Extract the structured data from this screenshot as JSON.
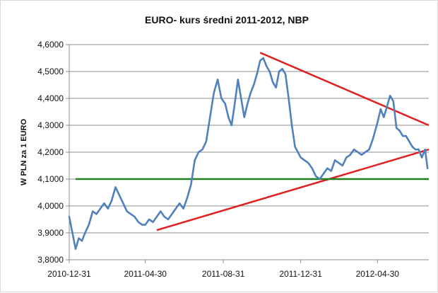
{
  "chart_data": {
    "type": "line",
    "title": "EURO- kurs średni  2011-2012, NBP",
    "xlabel": "",
    "ylabel": "W PLN za 1 EURO",
    "ylim": [
      3.8,
      4.6
    ],
    "yticks": [
      3.8,
      3.9,
      4.0,
      4.1,
      4.2,
      4.3,
      4.4,
      4.5,
      4.6
    ],
    "ytick_labels": [
      "3,8000",
      "3,9000",
      "4,0000",
      "4,1000",
      "4,2000",
      "4,3000",
      "4,4000",
      "4,5000",
      "4,6000"
    ],
    "xlim": [
      "2010-12-31",
      "2012-07-20"
    ],
    "xtick_labels": [
      "2010-12-31",
      "2011-04-30",
      "2011-08-31",
      "2011-12-31",
      "2012-04-30"
    ],
    "grid": true,
    "legend": "none",
    "series": [
      {
        "color": "#4f81bd",
        "x": [
          "2010-12-31",
          "2011-01-05",
          "2011-01-10",
          "2011-01-15",
          "2011-01-20",
          "2011-01-25",
          "2011-01-31",
          "2011-02-06",
          "2011-02-12",
          "2011-02-18",
          "2011-02-24",
          "2011-03-02",
          "2011-03-08",
          "2011-03-14",
          "2011-03-20",
          "2011-03-26",
          "2011-04-01",
          "2011-04-07",
          "2011-04-13",
          "2011-04-19",
          "2011-04-25",
          "2011-04-30",
          "2011-05-06",
          "2011-05-12",
          "2011-05-18",
          "2011-05-24",
          "2011-05-30",
          "2011-06-05",
          "2011-06-11",
          "2011-06-17",
          "2011-06-23",
          "2011-06-29",
          "2011-07-05",
          "2011-07-11",
          "2011-07-17",
          "2011-07-23",
          "2011-07-29",
          "2011-08-04",
          "2011-08-10",
          "2011-08-16",
          "2011-08-22",
          "2011-08-28",
          "2011-09-03",
          "2011-09-08",
          "2011-09-13",
          "2011-09-18",
          "2011-09-23",
          "2011-09-28",
          "2011-10-03",
          "2011-10-08",
          "2011-10-13",
          "2011-10-18",
          "2011-10-23",
          "2011-10-28",
          "2011-11-02",
          "2011-11-07",
          "2011-11-12",
          "2011-11-17",
          "2011-11-22",
          "2011-11-27",
          "2011-12-02",
          "2011-12-07",
          "2011-12-12",
          "2011-12-17",
          "2011-12-22",
          "2011-12-31",
          "2012-01-06",
          "2012-01-12",
          "2012-01-18",
          "2012-01-24",
          "2012-01-30",
          "2012-02-05",
          "2012-02-11",
          "2012-02-17",
          "2012-02-23",
          "2012-02-29",
          "2012-03-06",
          "2012-03-12",
          "2012-03-18",
          "2012-03-24",
          "2012-03-30",
          "2012-04-05",
          "2012-04-11",
          "2012-04-17",
          "2012-04-23",
          "2012-04-30",
          "2012-05-05",
          "2012-05-10",
          "2012-05-15",
          "2012-05-20",
          "2012-05-25",
          "2012-05-30",
          "2012-06-04",
          "2012-06-09",
          "2012-06-14",
          "2012-06-19",
          "2012-06-24",
          "2012-06-29",
          "2012-07-04",
          "2012-07-09",
          "2012-07-14",
          "2012-07-18"
        ],
        "values": [
          3.96,
          3.9,
          3.84,
          3.88,
          3.87,
          3.9,
          3.93,
          3.98,
          3.97,
          3.99,
          4.01,
          3.99,
          4.02,
          4.07,
          4.04,
          4.01,
          3.98,
          3.97,
          3.96,
          3.94,
          3.93,
          3.93,
          3.95,
          3.94,
          3.96,
          3.98,
          3.96,
          3.95,
          3.97,
          3.99,
          4.01,
          3.99,
          4.03,
          4.08,
          4.17,
          4.2,
          4.21,
          4.24,
          4.33,
          4.42,
          4.47,
          4.4,
          4.38,
          4.33,
          4.3,
          4.38,
          4.47,
          4.4,
          4.33,
          4.38,
          4.42,
          4.45,
          4.49,
          4.54,
          4.55,
          4.52,
          4.5,
          4.46,
          4.44,
          4.5,
          4.51,
          4.49,
          4.4,
          4.3,
          4.22,
          4.18,
          4.17,
          4.16,
          4.14,
          4.11,
          4.1,
          4.12,
          4.14,
          4.13,
          4.17,
          4.16,
          4.15,
          4.18,
          4.19,
          4.21,
          4.2,
          4.19,
          4.2,
          4.21,
          4.25,
          4.31,
          4.36,
          4.33,
          4.37,
          4.41,
          4.39,
          4.29,
          4.28,
          4.26,
          4.26,
          4.24,
          4.22,
          4.21,
          4.21,
          4.18,
          4.21,
          4.14
        ]
      }
    ],
    "trend_lines": [
      {
        "color": "#e02020",
        "points": [
          [
            "2011-05-18",
            3.91
          ],
          [
            "2012-07-20",
            4.21
          ]
        ]
      },
      {
        "color": "#e02020",
        "points": [
          [
            "2011-10-28",
            4.57
          ],
          [
            "2012-07-20",
            4.3
          ]
        ]
      },
      {
        "color": "#208020",
        "points": [
          [
            "2011-01-10",
            4.1
          ],
          [
            "2012-07-20",
            4.1
          ]
        ]
      }
    ]
  }
}
